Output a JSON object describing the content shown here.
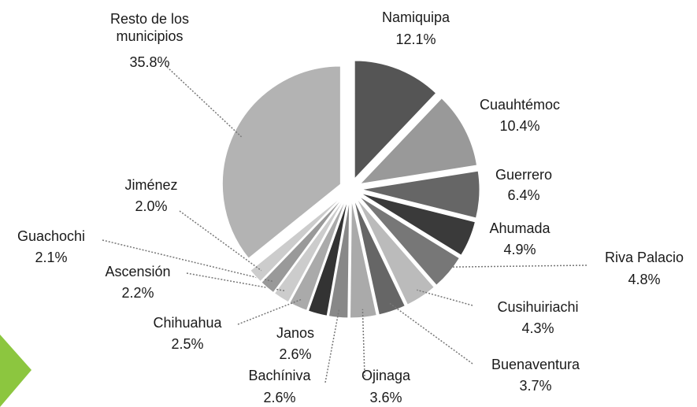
{
  "chart_data": {
    "type": "pie",
    "categories": [
      "Namiquipa",
      "Cuauhtémoc",
      "Guerrero",
      "Ahumada",
      "Riva Palacio",
      "Cusihuiriachi",
      "Buenaventura",
      "Ojinaga",
      "Bachíniva",
      "Janos",
      "Chihuahua",
      "Ascensión",
      "Guachochi",
      "Jiménez",
      "Resto de los municipios"
    ],
    "values": [
      12.1,
      10.4,
      6.4,
      4.9,
      4.8,
      4.3,
      3.7,
      3.6,
      2.6,
      2.6,
      2.5,
      2.2,
      2.1,
      2.0,
      35.8
    ],
    "value_labels": [
      "12.1%",
      "10.4%",
      "6.4%",
      "4.9%",
      "4.8%",
      "4.3%",
      "3.7%",
      "3.6%",
      "2.6%",
      "2.6%",
      "2.5%",
      "2.2%",
      "2.1%",
      "2.0%",
      "35.8%"
    ],
    "colors": [
      "#555555",
      "#999999",
      "#666666",
      "#3a3a3a",
      "#777777",
      "#bbbbbb",
      "#666666",
      "#aaaaaa",
      "#888888",
      "#333333",
      "#aaaaaa",
      "#cccccc",
      "#999999",
      "#cccccc",
      "#b3b3b3"
    ]
  }
}
